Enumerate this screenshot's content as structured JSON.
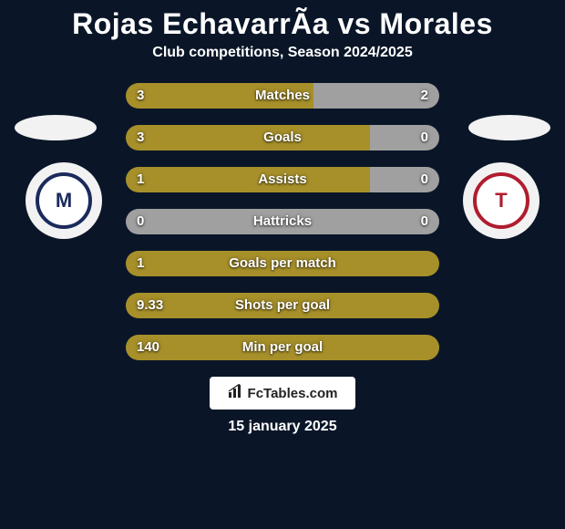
{
  "title": "Rojas EchavarrÃa vs Morales",
  "subtitle": "Club competitions, Season 2024/2025",
  "branding": "FcTables.com",
  "date": "15 january 2025",
  "colors": {
    "background": "#0a1628",
    "primary_fill": "#a7902a",
    "empty_fill": "#a0a0a0",
    "text": "#ffffff"
  },
  "crest_left": {
    "bg": "#ffffff",
    "inner_bg": "#ffffff",
    "inner_border": "#1a2a5c",
    "letter": "M",
    "letter_color": "#1a2a5c"
  },
  "crest_right": {
    "bg": "#ffffff",
    "inner_bg": "#ffffff",
    "inner_border": "#b01c2e",
    "letter": "T",
    "letter_color": "#b01c2e"
  },
  "bars": [
    {
      "label": "Matches",
      "left_text": "3",
      "right_text": "2",
      "pct_left": 60,
      "show_right": true
    },
    {
      "label": "Goals",
      "left_text": "3",
      "right_text": "0",
      "pct_left": 78,
      "show_right": true
    },
    {
      "label": "Assists",
      "left_text": "1",
      "right_text": "0",
      "pct_left": 78,
      "show_right": true
    },
    {
      "label": "Hattricks",
      "left_text": "0",
      "right_text": "0",
      "pct_left": 0,
      "show_right": true
    },
    {
      "label": "Goals per match",
      "left_text": "1",
      "right_text": "",
      "pct_left": 100,
      "show_right": false
    },
    {
      "label": "Shots per goal",
      "left_text": "9.33",
      "right_text": "",
      "pct_left": 100,
      "show_right": false
    },
    {
      "label": "Min per goal",
      "left_text": "140",
      "right_text": "",
      "pct_left": 100,
      "show_right": false
    }
  ]
}
